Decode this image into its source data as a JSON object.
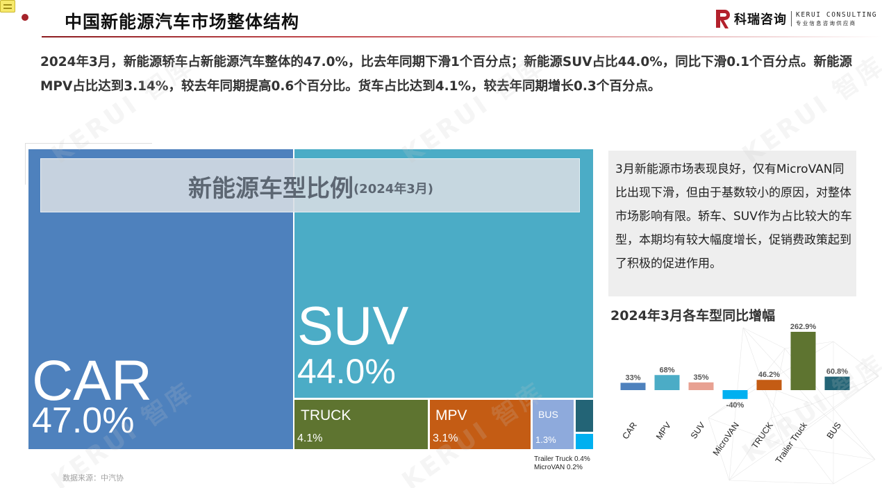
{
  "header": {
    "title": "中国新能源汽车市场整体结构",
    "logo_cn": "科瑞咨询",
    "logo_en": "KERUI CONSULTING",
    "logo_sub": "专业信息咨询供应商"
  },
  "summary": "2024年3月，新能源轿车占新能源汽车整体的47.0%，比去年同期下滑1个百分点；新能源SUV占比44.0%，同比下滑0.1个百分点。新能源MPV占比达到3.14%，较去年同期提高0.6个百分比。货车占比达到4.1%，较去年同期增长0.3个百分点。",
  "watermark": "KERUI 智库",
  "treemap": {
    "title_main": "新能源车型比例",
    "title_sub": "(2024年3月)",
    "car": {
      "name": "CAR",
      "pct": "47.0%",
      "color": "#4e81bd"
    },
    "suv": {
      "name": "SUV",
      "pct": "44.0%",
      "color": "#4bacc6"
    },
    "truck": {
      "name": "TRUCK",
      "pct": "4.1%",
      "color": "#5e7430"
    },
    "mpv": {
      "name": "MPV",
      "pct": "3.1%",
      "color": "#c45c14"
    },
    "bus": {
      "name": "BUS",
      "pct": "1.3%",
      "color": "#8eaadc"
    },
    "trailer_note": "Trailer Truck 0.4%",
    "microvan_note": "MicroVAN 0.2%",
    "trailer_color": "#236476",
    "microvan_color": "#00b0f0"
  },
  "source": "数据来源：中汽协",
  "comment": "3月新能源市场表现良好，仅有MicroVAN同比出现下滑，但由于基数较小的原因，对整体市场影响有限。轿车、SUV作为占比较大的车型，本期均有较大幅度增长，促销费政策起到了积极的促进作用。",
  "chart_data": {
    "type": "bar",
    "title": "2024年3月各车型同比增幅",
    "categories": [
      "CAR",
      "MPV",
      "SUV",
      "MicroVAN",
      "TRUCK",
      "Trailer Truck",
      "BUS"
    ],
    "values": [
      33,
      68,
      35,
      -40,
      46.2,
      262.9,
      60.8
    ],
    "labels": [
      "33%",
      "68%",
      "35%",
      "-40%",
      "46.2%",
      "262.9%",
      "60.8%"
    ],
    "colors": [
      "#4e81bd",
      "#4bacc6",
      "#e8a192",
      "#00b0f0",
      "#c45c14",
      "#5e7430",
      "#236476"
    ],
    "grid": false,
    "legend": "none"
  }
}
